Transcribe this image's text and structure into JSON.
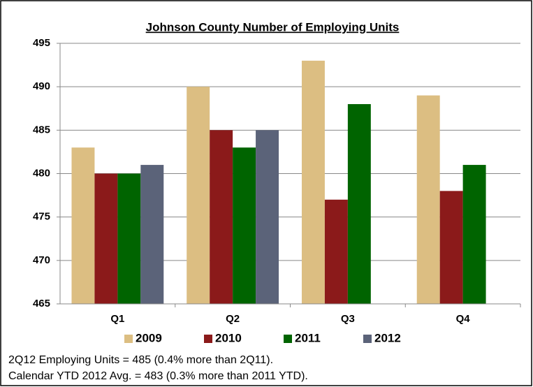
{
  "chart_data": {
    "type": "bar",
    "title": "Johnson County Number of Employing Units",
    "categories": [
      "Q1",
      "Q2",
      "Q3",
      "Q4"
    ],
    "series": [
      {
        "name": "2009",
        "color": "#dcbe82",
        "values": [
          483,
          490,
          493,
          489
        ]
      },
      {
        "name": "2010",
        "color": "#8b1a1a",
        "values": [
          480,
          485,
          477,
          478
        ]
      },
      {
        "name": "2011",
        "color": "#006400",
        "values": [
          480,
          483,
          488,
          481
        ]
      },
      {
        "name": "2012",
        "color": "#5b6379",
        "values": [
          481,
          485,
          null,
          null
        ]
      }
    ],
    "ylim": [
      465,
      495
    ],
    "yticks": [
      465,
      470,
      475,
      480,
      485,
      490,
      495
    ],
    "grid": true,
    "legend": "bottom",
    "notes": [
      "2Q12 Employing Units = 485 (0.4% more than 2Q11).",
      "Calendar YTD 2012 Avg. = 483 (0.3% more than 2011 YTD)."
    ]
  }
}
